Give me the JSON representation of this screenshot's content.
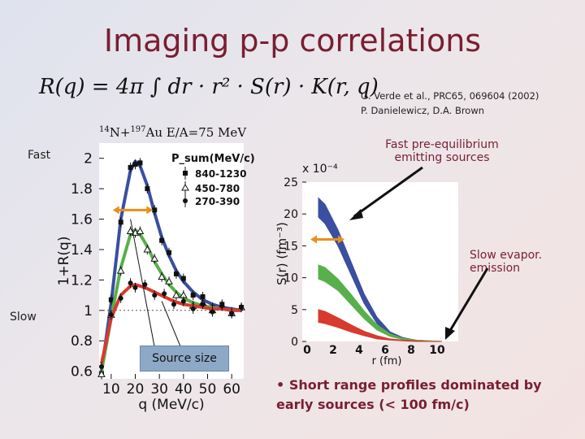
{
  "slide": {
    "title": "Imaging p-p correlations",
    "formula": "R(q) = 4π ∫ dr · r² · S(r) · K(r, q)",
    "references": [
      "G. Verde et al., PRC65, 069604 (2002)",
      "P. Danielewicz, D.A. Brown"
    ],
    "reaction": {
      "a": "14",
      "b": "N+",
      "c": "197",
      "d": "Au E/A=75 MeV"
    },
    "label_fast": "Fast",
    "label_slow": "Slow",
    "annot_fast": "Fast pre-equilibrium emitting sources",
    "annot_slow": "Slow evapor. emission",
    "source_size": "Source size",
    "bullet": "Short range profiles dominated by early sources (< 100 fm/c)",
    "bullet_symbol": "•"
  },
  "colors": {
    "blue": "#3a4fa0",
    "green": "#58b04a",
    "red": "#d83a2e",
    "orange": "#e8901a",
    "title": "#7a1e32"
  },
  "chart_data": [
    {
      "type": "line",
      "xlabel": "q (MeV/c)",
      "ylabel": "1+R(q)",
      "xlim": [
        5,
        65
      ],
      "ylim": [
        0.55,
        2.1
      ],
      "x_ticks": [
        10,
        20,
        30,
        40,
        50,
        60
      ],
      "x_tick_labels": [
        "10",
        "20",
        "30",
        "40",
        "50",
        "60"
      ],
      "y_ticks": [
        0.6,
        0.8,
        1.0,
        1.2,
        1.4,
        1.6,
        1.8,
        2.0
      ],
      "y_tick_labels": [
        "0.6",
        "0.8",
        "1",
        "1.2",
        "1.4",
        "1.6",
        "1.8",
        "2"
      ],
      "legend_title": "P_sum(MeV/c)",
      "legend_position": "top-right",
      "series": [
        {
          "name": "840-1230",
          "marker": "square",
          "color": "#3a4fa0",
          "x": [
            6,
            10,
            14,
            18,
            20,
            22,
            25,
            28,
            31,
            34,
            37,
            40,
            44,
            48,
            52,
            56,
            60,
            64
          ],
          "y": [
            0.6,
            1.05,
            1.6,
            1.92,
            1.98,
            1.95,
            1.82,
            1.64,
            1.48,
            1.36,
            1.26,
            1.19,
            1.12,
            1.07,
            1.04,
            1.02,
            1.01,
            1.0
          ]
        },
        {
          "name": "450-780",
          "marker": "triangle",
          "color": "#58b04a",
          "x": [
            6,
            10,
            14,
            18,
            20,
            22,
            25,
            28,
            31,
            34,
            37,
            40,
            44,
            48,
            52,
            56,
            60,
            64
          ],
          "y": [
            0.6,
            0.95,
            1.28,
            1.5,
            1.53,
            1.5,
            1.42,
            1.32,
            1.24,
            1.17,
            1.12,
            1.08,
            1.05,
            1.03,
            1.02,
            1.01,
            1.0,
            1.0
          ]
        },
        {
          "name": "270-390",
          "marker": "circle",
          "color": "#d83a2e",
          "x": [
            6,
            10,
            14,
            18,
            20,
            24,
            28,
            32,
            36,
            40,
            44,
            48,
            52,
            56,
            60,
            64
          ],
          "y": [
            0.65,
            0.95,
            1.1,
            1.16,
            1.17,
            1.15,
            1.12,
            1.09,
            1.06,
            1.04,
            1.03,
            1.02,
            1.01,
            1.01,
            1.0,
            1.0
          ]
        }
      ]
    },
    {
      "type": "area",
      "xlabel": "r (fm)",
      "ylabel": "S(r) (fm⁻³)",
      "scale_label": "x 10⁻⁴",
      "xlim": [
        0,
        12
      ],
      "ylim": [
        0,
        25
      ],
      "x_ticks": [
        0,
        2,
        4,
        6,
        8,
        10
      ],
      "x_tick_labels": [
        "0",
        "2",
        "4",
        "6",
        "8",
        "10"
      ],
      "y_ticks": [
        0,
        5,
        10,
        15,
        20,
        25
      ],
      "y_tick_labels": [
        "0",
        "5",
        "10",
        "15",
        "20",
        "25"
      ],
      "series": [
        {
          "name": "840-1230",
          "color": "#3a4fa0",
          "x": [
            0.5,
            1,
            2,
            3,
            4,
            5,
            6,
            7,
            8,
            9,
            10
          ],
          "upper": [
            22.5,
            21.5,
            17.5,
            12.5,
            7.5,
            3.8,
            1.5,
            0.6,
            0.2,
            0.1,
            0.0
          ],
          "lower": [
            19.5,
            18.5,
            15.0,
            10.5,
            6.0,
            2.8,
            1.0,
            0.3,
            0.1,
            0.0,
            0.0
          ]
        },
        {
          "name": "450-780",
          "color": "#58b04a",
          "x": [
            0.5,
            1,
            2,
            3,
            4,
            5,
            6,
            7,
            8,
            9,
            10
          ],
          "upper": [
            12.0,
            11.6,
            9.8,
            7.4,
            4.8,
            2.6,
            1.2,
            0.5,
            0.2,
            0.1,
            0.0
          ],
          "lower": [
            9.8,
            9.4,
            8.0,
            5.8,
            3.6,
            1.8,
            0.8,
            0.3,
            0.1,
            0.0,
            0.0
          ]
        },
        {
          "name": "270-390",
          "color": "#d83a2e",
          "x": [
            0.5,
            1,
            2,
            3,
            4,
            5,
            6,
            7,
            8,
            9,
            10
          ],
          "upper": [
            5.0,
            4.7,
            3.7,
            2.6,
            1.6,
            0.9,
            0.4,
            0.2,
            0.1,
            0.0,
            0.0
          ],
          "lower": [
            3.0,
            2.8,
            2.2,
            1.5,
            0.9,
            0.4,
            0.2,
            0.1,
            0.0,
            0.0,
            0.0
          ]
        }
      ]
    }
  ]
}
